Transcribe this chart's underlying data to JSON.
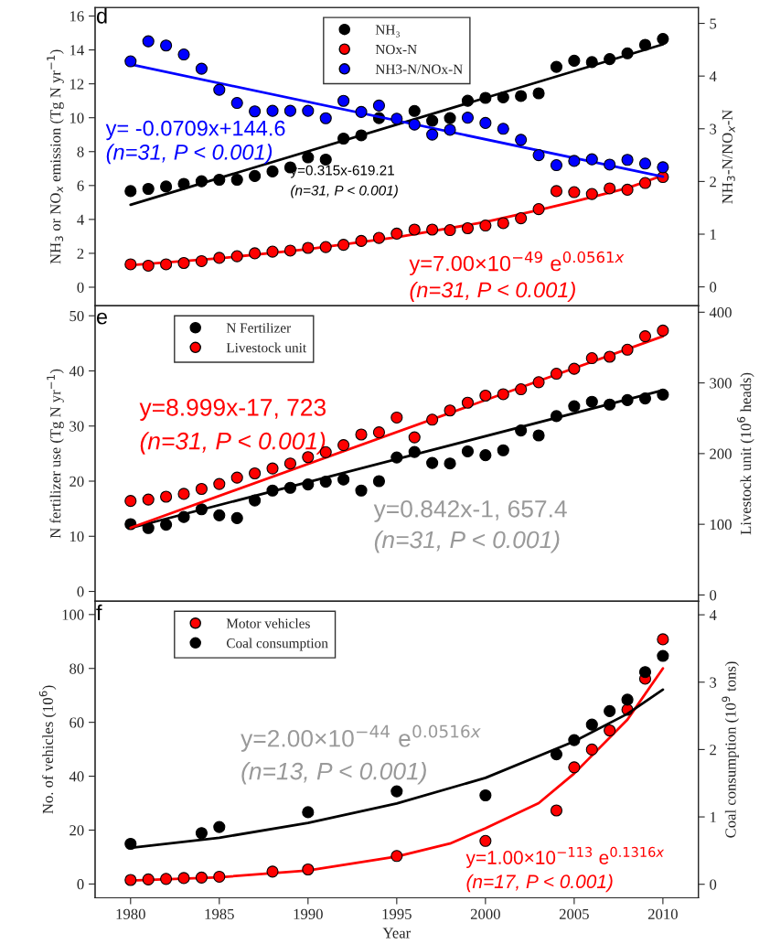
{
  "chart_data": [
    {
      "type": "scatter",
      "ylabel": "NH$_{3}$ or NO$_{x}$ emission (Tg N yr$^{−1}$)",
      "y2label": "NH$_{3}$-N/NO$_{x}$-N",
      "xlim": [
        1978,
        2012
      ],
      "xticks": [
        1980,
        1985,
        1990,
        1995,
        2000,
        2005,
        2010
      ],
      "ylim": [
        -1.1,
        16.5
      ],
      "yticks": [
        0,
        2,
        4,
        6,
        8,
        10,
        12,
        14,
        16
      ],
      "y2lim": [
        -0.36,
        5.3
      ],
      "y2ticks": [
        0,
        1,
        2,
        3,
        4,
        5
      ],
      "tick_labels": "y",
      "legend": "top",
      "marker": "circle",
      "x": [
        1980,
        1981,
        1982,
        1983,
        1984,
        1985,
        1986,
        1987,
        1988,
        1989,
        1990,
        1991,
        1992,
        1993,
        1994,
        1995,
        1996,
        1997,
        1998,
        1999,
        2000,
        2001,
        2002,
        2003,
        2004,
        2005,
        2006,
        2007,
        2008,
        2009,
        2010
      ],
      "series": [
        {
          "name": "NH₃",
          "color": "#000000",
          "values": [
            5.67,
            5.8,
            5.94,
            6.1,
            6.25,
            6.34,
            6.34,
            6.56,
            6.83,
            7.07,
            7.66,
            7.53,
            8.77,
            8.96,
            9.98,
            null,
            10.4,
            9.82,
            9.98,
            11.0,
            11.17,
            11.2,
            11.28,
            11.44,
            13.0,
            13.36,
            13.28,
            13.46,
            13.8,
            14.3,
            14.65
          ]
        },
        {
          "name": "NOx-N",
          "color": "#ff0000",
          "values": [
            1.35,
            1.27,
            1.35,
            1.43,
            1.54,
            1.73,
            1.83,
            2.0,
            2.1,
            2.16,
            2.32,
            2.37,
            2.5,
            2.73,
            2.91,
            3.16,
            3.4,
            3.4,
            3.37,
            3.48,
            3.64,
            3.78,
            4.07,
            4.61,
            5.67,
            5.61,
            5.5,
            5.83,
            5.75,
            6.15,
            6.5
          ]
        },
        {
          "name": "NH3-N/NOx-N",
          "color": "#0000ff",
          "axis": "y2",
          "values": [
            4.28,
            4.66,
            4.58,
            4.41,
            4.14,
            3.74,
            3.49,
            3.33,
            3.34,
            3.34,
            3.34,
            3.2,
            3.53,
            3.32,
            3.44,
            3.19,
            3.08,
            2.89,
            2.98,
            3.21,
            3.11,
            3.0,
            2.79,
            2.5,
            2.31,
            2.39,
            2.42,
            2.32,
            2.41,
            2.34,
            2.27
          ]
        },
        {
          "type": "line",
          "marker": "none",
          "color": "#000000",
          "x": [
            1980,
            2010
          ],
          "values": [
            4.86,
            14.33
          ]
        },
        {
          "type": "line",
          "marker": "none",
          "color": "#ff0000",
          "x": [
            1980,
            1985,
            1990,
            1995,
            2000,
            2003,
            2005,
            2008,
            2010
          ],
          "values": [
            1.3,
            1.7,
            2.25,
            2.95,
            3.85,
            4.55,
            5.05,
            5.85,
            6.6
          ]
        },
        {
          "type": "line",
          "marker": "none",
          "color": "#0000ff",
          "axis": "y2",
          "x": [
            1980,
            2010
          ],
          "values": [
            4.22,
            2.09
          ]
        }
      ],
      "annotations": [
        "d",
        "y= -0.0709x+144.6",
        "(n=31, P < 0.001)",
        "y=0.315x-619.21",
        "(n=31, P < 0.001)",
        "y=7.00×10$^{−49}$ e$^{0.0561x}$",
        "(n=31, P < 0.001)"
      ]
    },
    {
      "type": "scatter",
      "ylabel": "N fertilizer use (Tg N yr$^{−1}$)",
      "y2label": "Livestock unit (10$^{6}$ heads)",
      "xlim": [
        1978,
        2012
      ],
      "xticks": [
        1980,
        1985,
        1990,
        1995,
        2000,
        2005,
        2010
      ],
      "ylim": [
        -1.8,
        51.8
      ],
      "yticks": [
        0,
        10,
        20,
        30,
        40,
        50
      ],
      "y2lim": [
        -9,
        409
      ],
      "y2ticks": [
        0,
        100,
        200,
        300,
        400
      ],
      "tick_labels": "y",
      "legend": "top left",
      "marker": "circle",
      "x": [
        1980,
        1981,
        1982,
        1983,
        1984,
        1985,
        1986,
        1987,
        1988,
        1989,
        1990,
        1991,
        1992,
        1993,
        1994,
        1995,
        1996,
        1997,
        1998,
        1999,
        2000,
        2001,
        2002,
        2003,
        2004,
        2005,
        2006,
        2007,
        2008,
        2009,
        2010
      ],
      "series": [
        {
          "name": "N Fertilizer",
          "color": "#000000",
          "values": [
            12.2,
            11.5,
            12.1,
            13.5,
            14.9,
            13.8,
            13.3,
            16.5,
            18.3,
            18.8,
            19.4,
            19.9,
            20.3,
            18.3,
            20.0,
            24.3,
            25.3,
            23.3,
            23.2,
            25.4,
            24.7,
            25.6,
            29.2,
            28.3,
            31.8,
            33.6,
            34.4,
            33.9,
            34.7,
            35.0,
            35.7
          ]
        },
        {
          "name": "Livestock unit",
          "color": "#ff0000",
          "axis": "y2",
          "values": [
            133,
            135,
            139,
            143,
            150,
            157,
            166,
            172,
            179,
            186,
            195,
            202,
            212,
            227,
            230,
            251,
            223,
            248,
            261,
            272,
            282,
            284,
            291,
            301,
            313,
            320,
            335,
            337,
            347,
            366,
            374
          ]
        },
        {
          "type": "line",
          "marker": "none",
          "color": "#000000",
          "x": [
            1980,
            2010
          ],
          "values": [
            11.5,
            36.5
          ]
        },
        {
          "type": "line",
          "marker": "none",
          "color": "#ff0000",
          "axis": "y2",
          "x": [
            1980,
            2010
          ],
          "values": [
            95,
            366
          ]
        }
      ],
      "annotations": [
        "e",
        "y=8.999x-17, 723",
        "(n=31, P < 0.001)",
        "y=0.842x-1, 657.4",
        "(n=31, P < 0.001)"
      ]
    },
    {
      "type": "scatter",
      "xlabel": "Year",
      "ylabel": "No. of vehicles (10$^{6}$)",
      "y2label": "Coal consumption (10$^{9}$ tons)",
      "xlim": [
        1978,
        2012
      ],
      "xticks": [
        1980,
        1985,
        1990,
        1995,
        2000,
        2005,
        2010
      ],
      "ylim": [
        -5.1,
        104.9
      ],
      "yticks": [
        0,
        20,
        40,
        60,
        80,
        100
      ],
      "y2lim": [
        -0.2,
        4.2
      ],
      "y2ticks": [
        0,
        1,
        2,
        3,
        4
      ],
      "legend": "top left",
      "marker": "circle",
      "series": [
        {
          "name": "Motor vehicles",
          "color": "#ff0000",
          "x": [
            1980,
            1981,
            1982,
            1983,
            1984,
            1985,
            1988,
            1990,
            1995,
            2000,
            2004,
            2005,
            2006,
            2007,
            2008,
            2009,
            2010
          ],
          "values": [
            1.5,
            1.7,
            1.9,
            2.2,
            2.4,
            2.7,
            4.6,
            5.4,
            10.4,
            16.0,
            27.3,
            43.3,
            49.9,
            57.0,
            64.7,
            76.2,
            90.8
          ]
        },
        {
          "name": "Coal consumption",
          "color": "#000000",
          "axis": "y2",
          "x": [
            1980,
            1984,
            1985,
            1990,
            1995,
            2000,
            2004,
            2005,
            2006,
            2007,
            2008,
            2009,
            2010
          ],
          "values": [
            0.6,
            0.76,
            0.85,
            1.07,
            1.38,
            1.32,
            1.93,
            2.14,
            2.37,
            2.57,
            2.74,
            3.15,
            3.39
          ]
        },
        {
          "type": "line",
          "marker": "none",
          "color": "#000000",
          "axis": "y2",
          "x": [
            1980,
            1985,
            1990,
            1995,
            2000,
            2005,
            2008,
            2010
          ],
          "values": [
            0.54,
            0.69,
            0.91,
            1.2,
            1.58,
            2.12,
            2.53,
            2.89
          ]
        },
        {
          "type": "line",
          "marker": "none",
          "color": "#ff0000",
          "x": [
            1980,
            1985,
            1990,
            1995,
            1998,
            2000,
            2003,
            2005,
            2008,
            2010
          ],
          "values": [
            1.3,
            2.5,
            5.0,
            10.2,
            15.0,
            20.7,
            30.0,
            41.0,
            61.0,
            80.0
          ]
        }
      ],
      "annotations": [
        "f",
        "y=2.00×10$^{−44}$ e$^{0.0516x}$",
        "(n=13, P < 0.001)",
        "y=1.00×10$^{−113}$ e$^{0.1316x}$",
        "(n=17, P < 0.001)"
      ]
    }
  ]
}
